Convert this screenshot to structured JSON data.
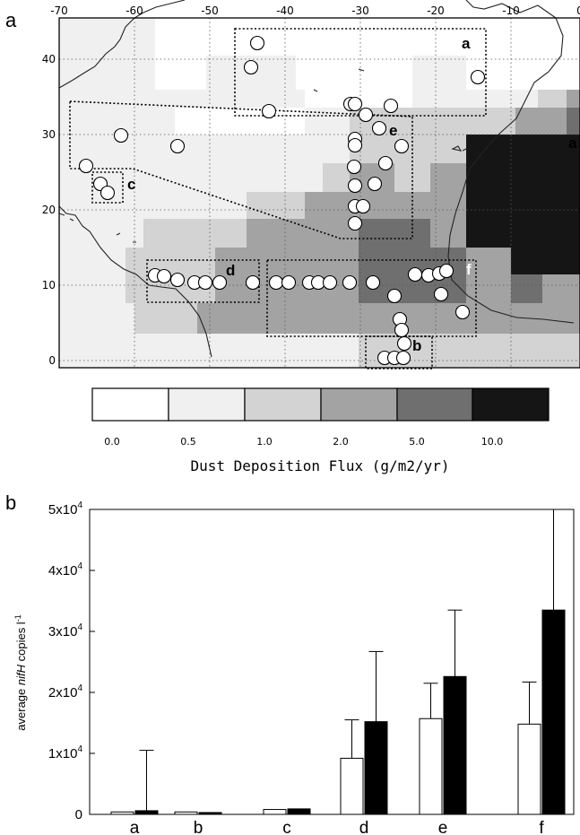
{
  "panels": {
    "a_letter": "a",
    "b_letter": "b"
  },
  "map": {
    "lon_ticks": [
      "-70",
      "-60",
      "-50",
      "-40",
      "-30",
      "-20",
      "-10",
      "0"
    ],
    "lat_ticks": [
      "40",
      "30",
      "20",
      "10",
      "0"
    ],
    "region_labels": {
      "a": "a",
      "b": "b",
      "c": "c",
      "d": "d",
      "e": "e",
      "f": "f",
      "edge_a": "a"
    },
    "colors": {
      "bin0": "#ffffff",
      "bin1": "#f0f0f0",
      "bin2": "#d3d3d3",
      "bin3": "#a3a3a3",
      "bin4": "#6f6f6f",
      "bin5": "#151515"
    }
  },
  "colorbar": {
    "ticks": [
      "0.0",
      "0.5",
      "1.0",
      "2.0",
      "5.0",
      "10.0"
    ],
    "title": "Dust Deposition Flux (g/m2/yr)"
  },
  "chart_data": {
    "type": "bar",
    "categories": [
      "a",
      "b",
      "c",
      "d",
      "e",
      "f"
    ],
    "series": [
      {
        "fill": "#ffffff",
        "values": [
          400,
          400,
          800,
          9200,
          15700,
          14800
        ],
        "error_upper": [
          400,
          400,
          800,
          15500,
          21500,
          21700
        ]
      },
      {
        "fill": "#000000",
        "values": [
          600,
          300,
          900,
          15200,
          22600,
          33500
        ],
        "error_upper": [
          10500,
          300,
          900,
          26700,
          33500,
          50000
        ]
      }
    ],
    "ylim": [
      0,
      50000
    ],
    "ytick_labels": [
      {
        "value": 0,
        "base": "0",
        "exp": ""
      },
      {
        "value": 10000,
        "base": "1x10",
        "exp": "4"
      },
      {
        "value": 20000,
        "base": "2x10",
        "exp": "4"
      },
      {
        "value": 30000,
        "base": "3x10",
        "exp": "4"
      },
      {
        "value": 40000,
        "base": "4x10",
        "exp": "4"
      },
      {
        "value": 50000,
        "base": "5x10",
        "exp": "4"
      }
    ],
    "ylabel": {
      "pre": "average ",
      "ital": "nifH",
      "post": " copies l",
      "sup": "-1"
    }
  }
}
